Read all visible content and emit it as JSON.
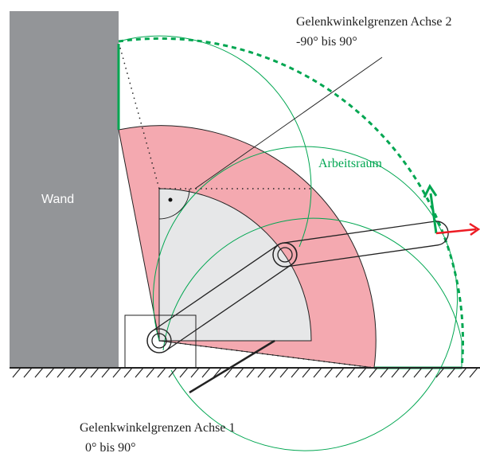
{
  "labels": {
    "axis2_title": "Gelenkwinkelgrenzen Achse 2",
    "axis2_range": "-90° bis 90°",
    "workspace": "Arbeitsraum",
    "wall": "Wand",
    "axis1_title": "Gelenkwinkelgrenzen Achse 1",
    "axis1_range": "0° bis 90°"
  }
}
